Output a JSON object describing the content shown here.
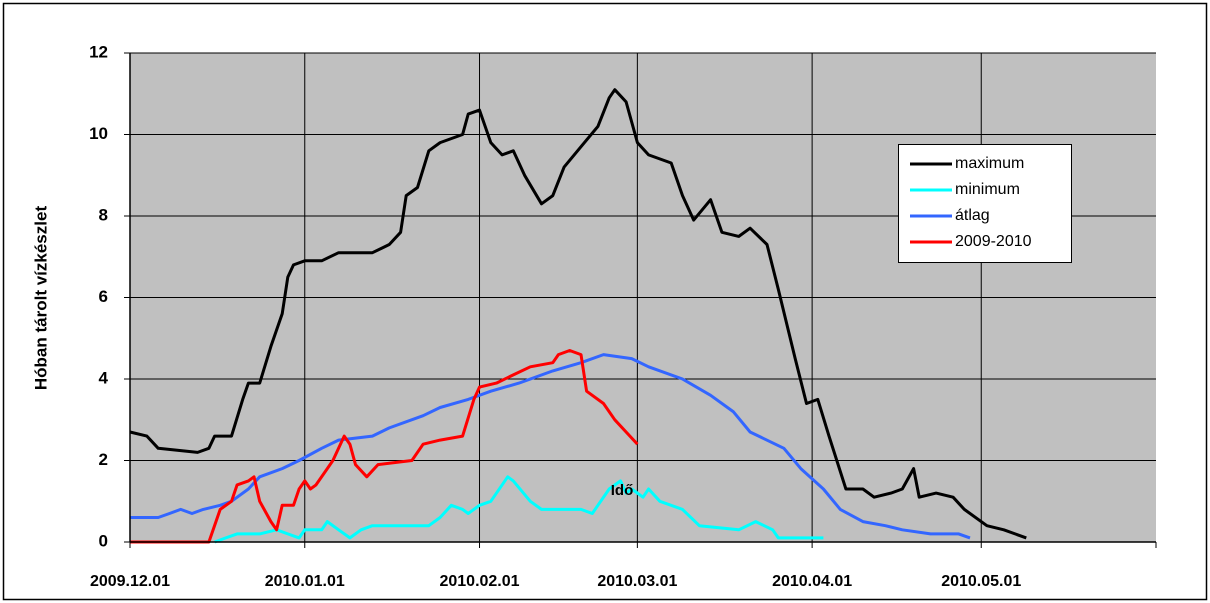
{
  "chart_data": {
    "type": "line",
    "y_label": "Hóban tárolt vízkészlet",
    "x_label": "Idő",
    "xlim": [
      "2009.12.01",
      "2010.06.01"
    ],
    "xticks": [
      "2009.12.01",
      "2010.01.01",
      "2010.02.01",
      "2010.03.01",
      "2010.04.01",
      "2010.05.01"
    ],
    "ylim": [
      0,
      12
    ],
    "yticks": [
      0,
      2,
      4,
      6,
      8,
      10,
      12
    ],
    "grid": true,
    "series": [
      {
        "name": "maximum",
        "color": "#000000",
        "x": [
          "2009.12.01",
          "2009.12.04",
          "2009.12.06",
          "2009.12.13",
          "2009.12.15",
          "2009.12.16",
          "2009.12.19",
          "2009.12.21",
          "2009.12.22",
          "2009.12.24",
          "2009.12.26",
          "2009.12.28",
          "2009.12.29",
          "2009.12.30",
          "2010.01.01",
          "2010.01.04",
          "2010.01.07",
          "2010.01.13",
          "2010.01.16",
          "2010.01.18",
          "2010.01.19",
          "2010.01.21",
          "2010.01.23",
          "2010.01.25",
          "2010.01.29",
          "2010.01.30",
          "2010.02.01",
          "2010.02.03",
          "2010.02.05",
          "2010.02.07",
          "2010.02.09",
          "2010.02.12",
          "2010.02.14",
          "2010.02.16",
          "2010.02.19",
          "2010.02.22",
          "2010.02.24",
          "2010.02.25",
          "2010.02.27",
          "2010.03.01",
          "2010.03.03",
          "2010.03.07",
          "2010.03.09",
          "2010.03.11",
          "2010.03.14",
          "2010.03.16",
          "2010.03.19",
          "2010.03.21",
          "2010.03.24",
          "2010.03.26",
          "2010.03.29",
          "2010.03.31",
          "2010.04.02",
          "2010.04.04",
          "2010.04.07",
          "2010.04.10",
          "2010.04.12",
          "2010.04.15",
          "2010.04.17",
          "2010.04.19",
          "2010.04.20",
          "2010.04.23",
          "2010.04.26",
          "2010.04.28",
          "2010.05.02",
          "2010.05.05",
          "2010.05.07",
          "2010.05.09"
        ],
        "values": [
          2.7,
          2.6,
          2.3,
          2.2,
          2.3,
          2.6,
          2.6,
          3.5,
          3.9,
          3.9,
          4.8,
          5.6,
          6.5,
          6.8,
          6.9,
          6.9,
          7.1,
          7.1,
          7.3,
          7.6,
          8.5,
          8.7,
          9.6,
          9.8,
          10.0,
          10.5,
          10.6,
          9.8,
          9.5,
          9.6,
          9.0,
          8.3,
          8.5,
          9.2,
          9.7,
          10.2,
          10.9,
          11.1,
          10.8,
          9.8,
          9.5,
          9.3,
          8.5,
          7.9,
          8.4,
          7.6,
          7.5,
          7.7,
          7.3,
          6.2,
          4.5,
          3.4,
          3.5,
          2.6,
          1.3,
          1.3,
          1.1,
          1.2,
          1.3,
          1.8,
          1.1,
          1.2,
          1.1,
          0.8,
          0.4,
          0.3,
          0.2,
          0.1
        ]
      },
      {
        "name": "minimum",
        "color": "#00ffff",
        "x": [
          "2009.12.16",
          "2009.12.18",
          "2009.12.20",
          "2009.12.24",
          "2009.12.27",
          "2009.12.29",
          "2009.12.31",
          "2010.01.01",
          "2010.01.04",
          "2010.01.05",
          "2010.01.07",
          "2010.01.09",
          "2010.01.11",
          "2010.01.13",
          "2010.01.23",
          "2010.01.25",
          "2010.01.27",
          "2010.01.29",
          "2010.01.30",
          "2010.02.01",
          "2010.02.03",
          "2010.02.06",
          "2010.02.07",
          "2010.02.10",
          "2010.02.12",
          "2010.02.19",
          "2010.02.21",
          "2010.02.22",
          "2010.02.24",
          "2010.02.26",
          "2010.02.27",
          "2010.02.28",
          "2010.03.02",
          "2010.03.03",
          "2010.03.05",
          "2010.03.09",
          "2010.03.12",
          "2010.03.19",
          "2010.03.22",
          "2010.03.25",
          "2010.03.26",
          "2010.04.03"
        ],
        "values": [
          0,
          0.1,
          0.2,
          0.2,
          0.3,
          0.2,
          0.1,
          0.3,
          0.3,
          0.5,
          0.3,
          0.1,
          0.3,
          0.4,
          0.4,
          0.6,
          0.9,
          0.8,
          0.7,
          0.9,
          1.0,
          1.6,
          1.5,
          1.0,
          0.8,
          0.8,
          0.7,
          0.9,
          1.3,
          1.5,
          1.2,
          1.3,
          1.1,
          1.3,
          1.0,
          0.8,
          0.4,
          0.3,
          0.5,
          0.3,
          0.1,
          0.1
        ]
      },
      {
        "name": "átlag",
        "color": "#3366ff",
        "x": [
          "2009.12.01",
          "2009.12.06",
          "2009.12.08",
          "2009.12.10",
          "2009.12.12",
          "2009.12.14",
          "2009.12.17",
          "2009.12.19",
          "2009.12.22",
          "2009.12.24",
          "2009.12.28",
          "2009.12.31",
          "2010.01.04",
          "2010.01.07",
          "2010.01.13",
          "2010.01.16",
          "2010.01.22",
          "2010.01.25",
          "2010.01.30",
          "2010.02.03",
          "2010.02.08",
          "2010.02.14",
          "2010.02.19",
          "2010.02.23",
          "2010.02.28",
          "2010.03.03",
          "2010.03.09",
          "2010.03.14",
          "2010.03.18",
          "2010.03.21",
          "2010.03.27",
          "2010.03.30",
          "2010.04.03",
          "2010.04.06",
          "2010.04.10",
          "2010.04.14",
          "2010.04.17",
          "2010.04.22",
          "2010.04.27",
          "2010.04.29"
        ],
        "values": [
          0.6,
          0.6,
          0.7,
          0.8,
          0.7,
          0.8,
          0.9,
          1.0,
          1.3,
          1.6,
          1.8,
          2.0,
          2.3,
          2.5,
          2.6,
          2.8,
          3.1,
          3.3,
          3.5,
          3.7,
          3.9,
          4.2,
          4.4,
          4.6,
          4.5,
          4.3,
          4.0,
          3.6,
          3.2,
          2.7,
          2.3,
          1.8,
          1.3,
          0.8,
          0.5,
          0.4,
          0.3,
          0.2,
          0.2,
          0.1
        ]
      },
      {
        "name": "2009-2010",
        "color": "#ff0000",
        "x": [
          "2009.12.01",
          "2009.12.15",
          "2009.12.17",
          "2009.12.19",
          "2009.12.20",
          "2009.12.22",
          "2009.12.23",
          "2009.12.24",
          "2009.12.26",
          "2009.12.27",
          "2009.12.28",
          "2009.12.30",
          "2009.12.31",
          "2010.01.01",
          "2010.01.02",
          "2010.01.03",
          "2010.01.05",
          "2010.01.06",
          "2010.01.08",
          "2010.01.09",
          "2010.01.10",
          "2010.01.12",
          "2010.01.14",
          "2010.01.20",
          "2010.01.22",
          "2010.01.25",
          "2010.01.29",
          "2010.01.31",
          "2010.02.01",
          "2010.02.04",
          "2010.02.07",
          "2010.02.10",
          "2010.02.14",
          "2010.02.15",
          "2010.02.17",
          "2010.02.19",
          "2010.02.20",
          "2010.02.23",
          "2010.02.25",
          "2010.02.27",
          "2010.03.01"
        ],
        "values": [
          0,
          0,
          0.8,
          1.0,
          1.4,
          1.5,
          1.6,
          1.0,
          0.5,
          0.3,
          0.9,
          0.9,
          1.3,
          1.5,
          1.3,
          1.4,
          1.8,
          2.0,
          2.6,
          2.4,
          1.9,
          1.6,
          1.9,
          2.0,
          2.4,
          2.5,
          2.6,
          3.5,
          3.8,
          3.9,
          4.1,
          4.3,
          4.4,
          4.6,
          4.7,
          4.6,
          3.7,
          3.4,
          3.0,
          2.7,
          2.4
        ]
      }
    ]
  }
}
